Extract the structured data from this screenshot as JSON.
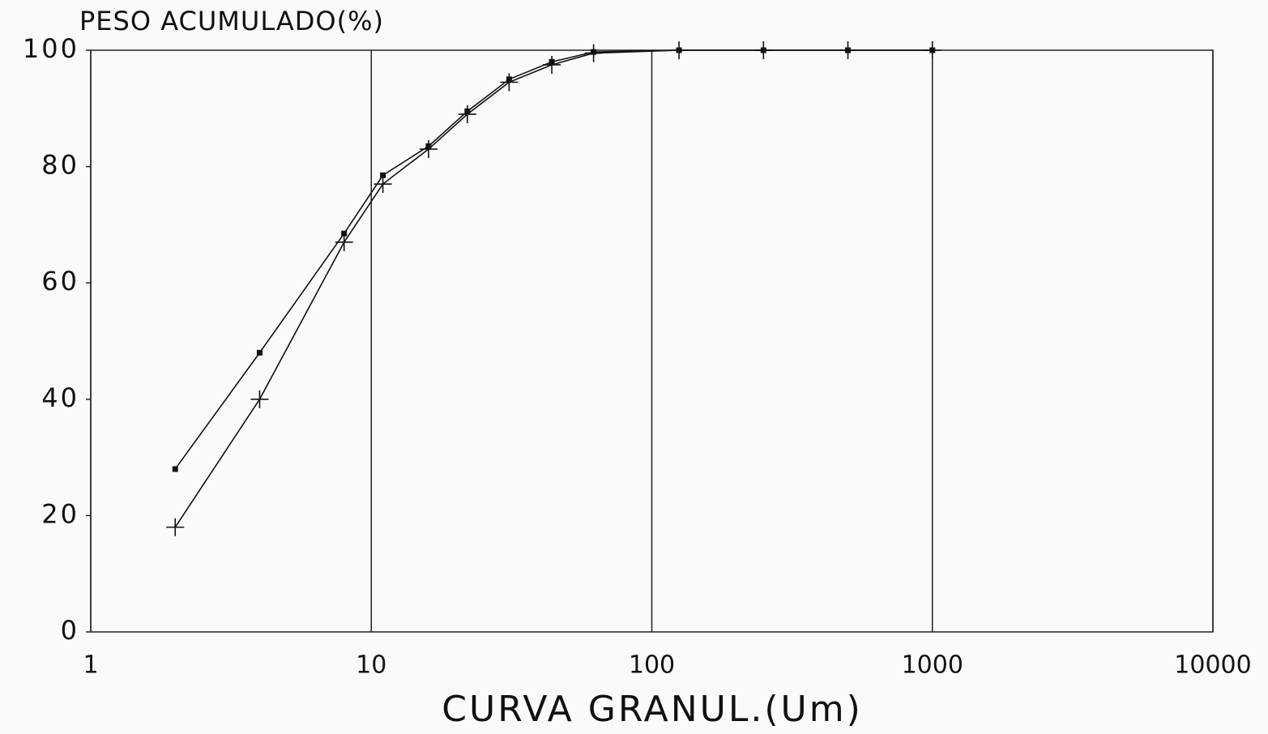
{
  "chart_data": {
    "type": "line",
    "title": "PESO ACUMULADO(%)",
    "x_label": "CURVA GRANUL.(Um)",
    "x": [
      2,
      4,
      8,
      11,
      16,
      22,
      31,
      44,
      62,
      125,
      250,
      500,
      1000
    ],
    "series": [
      {
        "color": "#111111",
        "marker": "square",
        "values": [
          28,
          48,
          68.5,
          78.5,
          83.5,
          89.5,
          95,
          98,
          99.7,
          100,
          100,
          100,
          100
        ]
      },
      {
        "color": "#111111",
        "marker": "plus",
        "values": [
          18,
          40,
          67,
          77,
          83,
          89,
          94.5,
          97.5,
          99.5,
          100,
          100,
          100,
          100
        ]
      }
    ],
    "xscale": "log",
    "xlim": [
      1,
      10000
    ],
    "xticks": [
      1,
      10,
      100,
      1000,
      10000
    ],
    "ylim": [
      0,
      100
    ],
    "yticks": [
      0,
      20,
      40,
      60,
      80,
      100
    ],
    "grid": "x"
  }
}
